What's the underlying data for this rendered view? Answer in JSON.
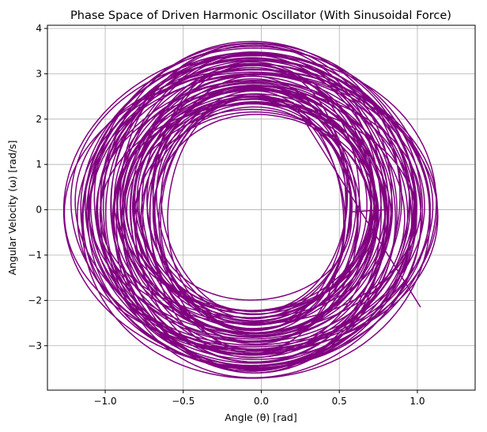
{
  "chart_data": {
    "type": "line",
    "title": "Phase Space of Driven Harmonic Oscillator (With Sinusoidal Force)",
    "xlabel": "Angle (θ) [rad]",
    "ylabel": "Angular Velocity (ω) [rad/s]",
    "xlim": [
      -1.37,
      1.37
    ],
    "ylim": [
      -3.98,
      4.07
    ],
    "x_ticks": [
      -1.0,
      -0.5,
      0.0,
      0.5,
      1.0
    ],
    "x_tick_labels": [
      "−1.0",
      "−0.5",
      "0.0",
      "0.5",
      "1.0"
    ],
    "y_ticks": [
      -3,
      -2,
      -1,
      0,
      1,
      2,
      3,
      4
    ],
    "y_tick_labels": [
      "−3",
      "−2",
      "−1",
      "0",
      "1",
      "2",
      "3",
      "4"
    ],
    "grid": true,
    "legend": "none",
    "series": [
      {
        "color": "#800080",
        "trajectory": {
          "start": [
            0.785,
            0.0
          ],
          "end": [
            1.02,
            -2.15
          ],
          "x_range": [
            -1.25,
            1.26
          ],
          "y_range": [
            -3.6,
            3.7
          ],
          "innermost_loop": {
            "x_range": [
              -0.65,
              0.55
            ],
            "y_range": [
              -1.85,
              1.88
            ]
          }
        }
      }
    ]
  }
}
